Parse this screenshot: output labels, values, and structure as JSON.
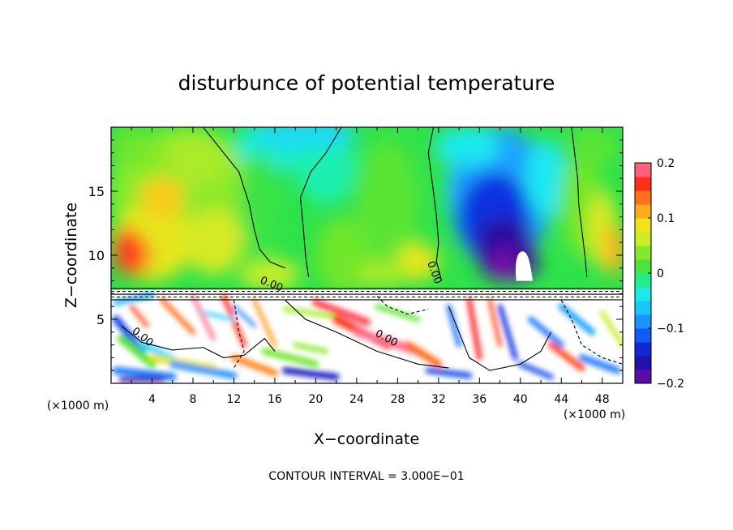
{
  "chart_data": {
    "type": "heatmap",
    "title": "disturbunce of potential temperature",
    "xlabel": "X−coordinate",
    "ylabel": "Z−coordinate",
    "x_unit_left": "(×1000 m)",
    "x_unit_right": "(×1000 m)",
    "footer": "CONTOUR INTERVAL = 3.000E−01",
    "xlim": [
      0,
      50
    ],
    "ylim": [
      0,
      20
    ],
    "x_ticks": [
      4,
      8,
      12,
      16,
      20,
      24,
      28,
      32,
      36,
      40,
      44,
      48
    ],
    "x_tick_labels": [
      "4",
      "8",
      "12",
      "16",
      "20",
      "24",
      "28",
      "32",
      "36",
      "40",
      "44",
      "48"
    ],
    "y_ticks": [
      5,
      10,
      15
    ],
    "y_tick_labels": [
      "5",
      "10",
      "15"
    ],
    "colorbar": {
      "range": [
        -0.2,
        0.2
      ],
      "tick_values": [
        0.2,
        0.1,
        0,
        -0.1,
        -0.2
      ],
      "tick_labels": [
        "0.2",
        "0.1",
        "0",
        "−0.1",
        "−0.2"
      ]
    },
    "contour_labels": [
      "0.00",
      "0.00",
      "0.00",
      "0.00"
    ],
    "layer_boundary_z": 7.3,
    "warm_features": [
      {
        "x": 2,
        "z": 10,
        "value": 0.15
      },
      {
        "x": 4,
        "z": 14,
        "value": 0.1
      },
      {
        "x": 16,
        "z": 10,
        "value": 0.06
      },
      {
        "x": 46,
        "z": 12,
        "value": 0.08
      },
      {
        "x": 49,
        "z": 10,
        "value": 0.1
      }
    ],
    "cold_features": [
      {
        "x": 37,
        "z": 13,
        "value": -0.16
      },
      {
        "x": 38,
        "z": 10,
        "value": -0.2
      },
      {
        "x": 20,
        "z": 19,
        "value": -0.05
      },
      {
        "x": 14,
        "z": 19,
        "value": -0.04
      }
    ]
  }
}
